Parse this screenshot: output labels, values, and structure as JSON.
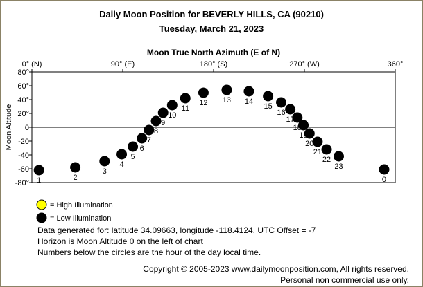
{
  "header": {
    "title": "Daily Moon Position for BEVERLY HILLS, CA (90210)",
    "date": "Tuesday, March 21, 2023"
  },
  "legend": {
    "high_label": "= High Illumination",
    "low_label": "= Low Illumination",
    "high_color": "#ffff00",
    "low_color": "#000000"
  },
  "footer": {
    "line1": "Data generated for: latitude 34.09663, longitude -118.4124, UTC Offset = -7",
    "line2": "Horizon is Moon Altitude 0 on the left of chart",
    "line3": "Numbers below the circles are the hour of the day local time.",
    "copyright": "Copyright © 2005-2023 www.dailymoonposition.com, All rights reserved.",
    "personal": "Personal non commercial use only."
  },
  "chart_data": {
    "type": "scatter",
    "title": "Moon True North Azimuth (E of N)",
    "xlabel": "Moon True North Azimuth (E of N)",
    "ylabel": "Moon Altitude",
    "xlim": [
      0,
      360
    ],
    "ylim": [
      -80,
      80
    ],
    "x_ticks": [
      {
        "value": 0,
        "label": "0° (N)"
      },
      {
        "value": 90,
        "label": "90° (E)"
      },
      {
        "value": 180,
        "label": "180° (S)"
      },
      {
        "value": 270,
        "label": "270° (W)"
      },
      {
        "value": 360,
        "label": "360°"
      }
    ],
    "y_ticks": [
      80,
      60,
      40,
      20,
      0,
      -20,
      -40,
      -60,
      -80
    ],
    "y_tick_labels": [
      "80°",
      "60°",
      "40°",
      "20°",
      "0",
      "-20",
      "-40",
      "-60",
      "-80°"
    ],
    "grid": false,
    "horizon_line": 0,
    "points": [
      {
        "hour": "1",
        "azimuth": 7,
        "altitude": -62,
        "illumination": "low"
      },
      {
        "hour": "2",
        "azimuth": 43,
        "altitude": -58,
        "illumination": "low"
      },
      {
        "hour": "3",
        "azimuth": 72,
        "altitude": -49,
        "illumination": "low"
      },
      {
        "hour": "4",
        "azimuth": 89,
        "altitude": -39,
        "illumination": "low"
      },
      {
        "hour": "5",
        "azimuth": 100,
        "altitude": -28,
        "illumination": "low"
      },
      {
        "hour": "6",
        "azimuth": 109,
        "altitude": -16,
        "illumination": "low"
      },
      {
        "hour": "7",
        "azimuth": 116,
        "altitude": -4,
        "illumination": "low"
      },
      {
        "hour": "8",
        "azimuth": 123,
        "altitude": 9,
        "illumination": "low"
      },
      {
        "hour": "9",
        "azimuth": 130,
        "altitude": 21,
        "illumination": "low"
      },
      {
        "hour": "10",
        "azimuth": 139,
        "altitude": 32,
        "illumination": "low"
      },
      {
        "hour": "11",
        "azimuth": 152,
        "altitude": 42,
        "illumination": "low"
      },
      {
        "hour": "12",
        "azimuth": 170,
        "altitude": 50,
        "illumination": "low"
      },
      {
        "hour": "13",
        "azimuth": 193,
        "altitude": 54,
        "illumination": "low"
      },
      {
        "hour": "14",
        "azimuth": 215,
        "altitude": 52,
        "illumination": "low"
      },
      {
        "hour": "15",
        "azimuth": 234,
        "altitude": 45,
        "illumination": "low"
      },
      {
        "hour": "16",
        "azimuth": 247,
        "altitude": 36,
        "illumination": "low"
      },
      {
        "hour": "17",
        "azimuth": 256,
        "altitude": 26,
        "illumination": "low"
      },
      {
        "hour": "18",
        "azimuth": 263,
        "altitude": 14,
        "illumination": "low"
      },
      {
        "hour": "19",
        "azimuth": 269,
        "altitude": 3,
        "illumination": "low"
      },
      {
        "hour": "20",
        "azimuth": 275,
        "altitude": -9,
        "illumination": "low"
      },
      {
        "hour": "21",
        "azimuth": 283,
        "altitude": -21,
        "illumination": "low"
      },
      {
        "hour": "22",
        "azimuth": 292,
        "altitude": -32,
        "illumination": "low"
      },
      {
        "hour": "23",
        "azimuth": 304,
        "altitude": -42,
        "illumination": "low"
      },
      {
        "hour": "0",
        "azimuth": 349,
        "altitude": -61,
        "illumination": "low"
      }
    ]
  }
}
